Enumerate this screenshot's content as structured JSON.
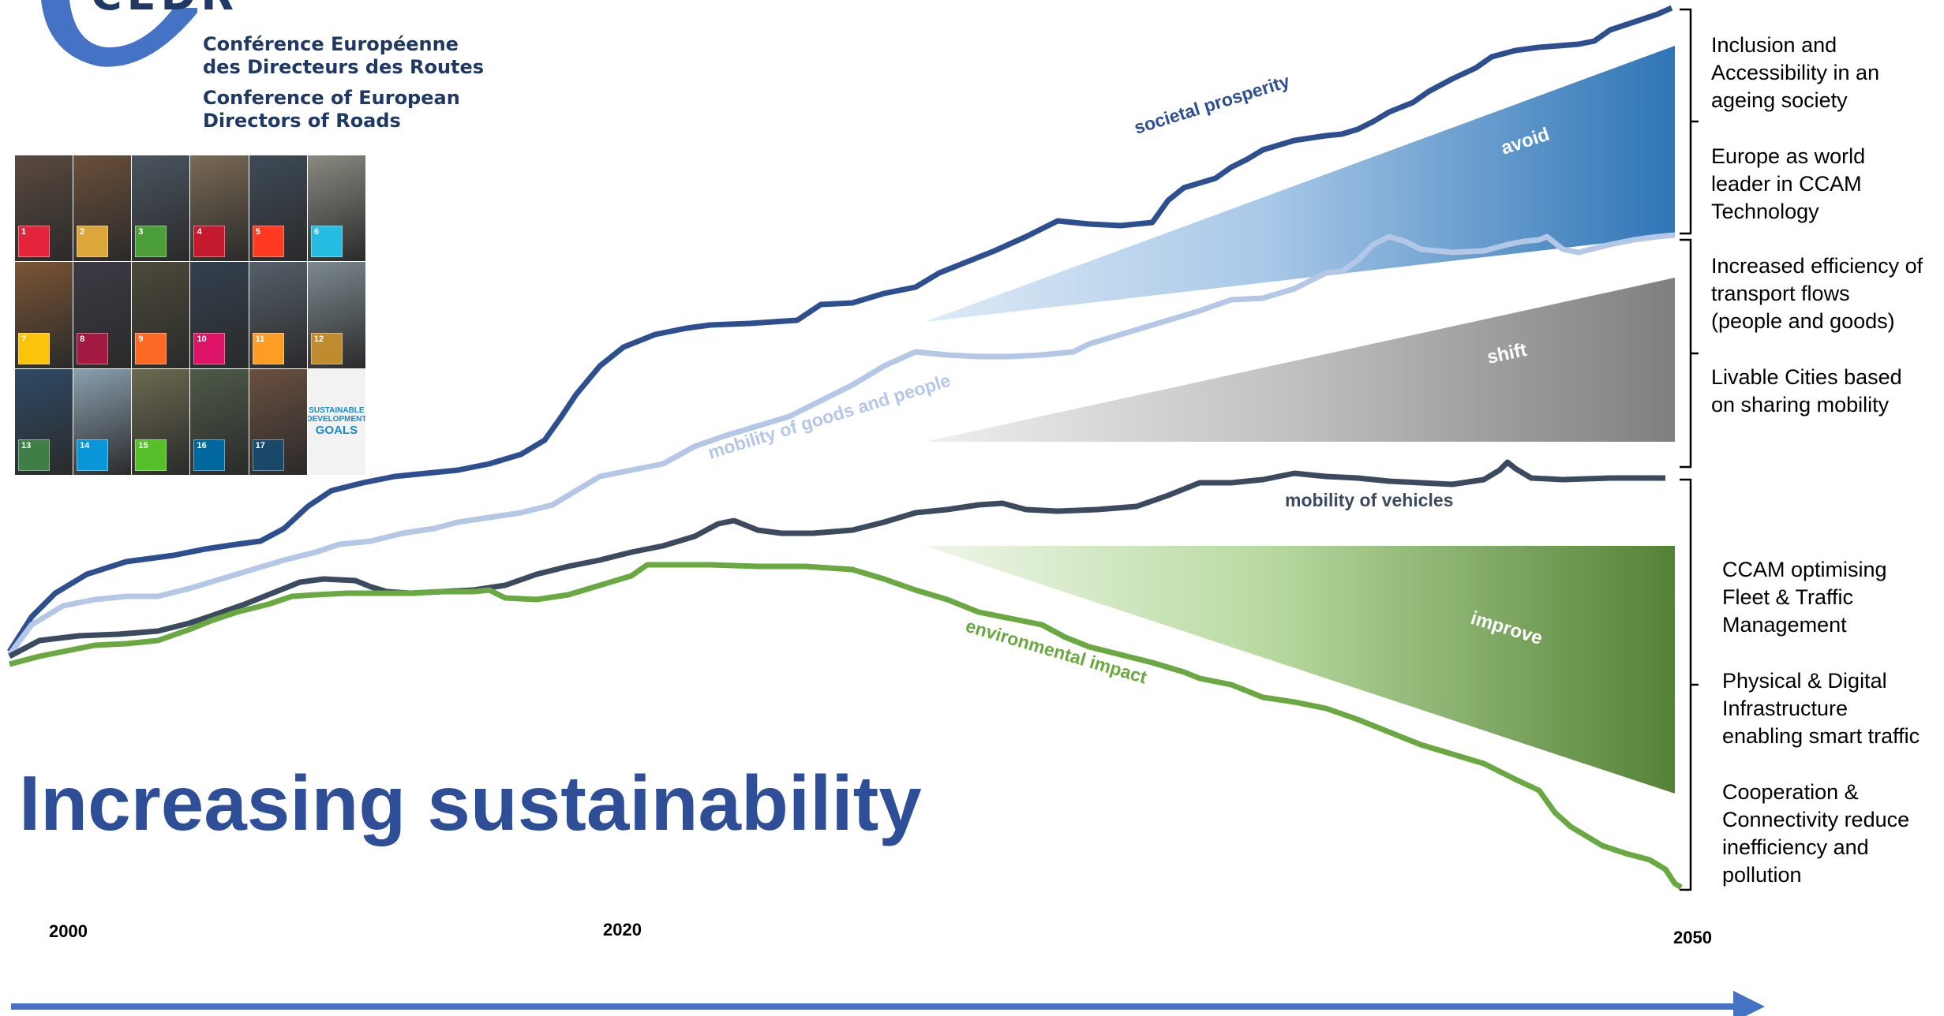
{
  "logo": {
    "wordmark": "CEDR",
    "fr_line1": "Conférence Européenne",
    "fr_line2": "des Directeurs des Routes",
    "en_line1": "Conference of European",
    "en_line2": "Directors of Roads"
  },
  "sdg": {
    "goals_label": "SUSTAINABLE DEVELOPMENT",
    "goals_word": "GOALS",
    "tiles": [
      {
        "num": "1",
        "color": "#e5243b"
      },
      {
        "num": "2",
        "color": "#dda63a"
      },
      {
        "num": "3",
        "color": "#4c9f38"
      },
      {
        "num": "4",
        "color": "#c5192d"
      },
      {
        "num": "5",
        "color": "#ff3a21"
      },
      {
        "num": "6",
        "color": "#26bde2"
      },
      {
        "num": "7",
        "color": "#fcc30b"
      },
      {
        "num": "8",
        "color": "#a21942"
      },
      {
        "num": "9",
        "color": "#fd6925"
      },
      {
        "num": "10",
        "color": "#dd1367"
      },
      {
        "num": "11",
        "color": "#fd9d24"
      },
      {
        "num": "12",
        "color": "#bf8b2e"
      },
      {
        "num": "13",
        "color": "#3f7e44"
      },
      {
        "num": "14",
        "color": "#0a97d9"
      },
      {
        "num": "15",
        "color": "#56c02b"
      },
      {
        "num": "16",
        "color": "#00689d"
      },
      {
        "num": "17",
        "color": "#19486a"
      }
    ]
  },
  "curves": {
    "societal_prosperity": "societal prosperity",
    "mobility_goods_people": "mobility of goods and people",
    "mobility_vehicles": "mobility of vehicles",
    "environmental_impact": "environmental impact"
  },
  "wedges": {
    "avoid": "avoid",
    "shift": "shift",
    "improve": "improve"
  },
  "right_panel": {
    "inclusion": "Inclusion and\nAccessibility in an\nageing society",
    "ccam_leader": "Europe as world\nleader in CCAM\nTechnology",
    "efficiency": "Increased efficiency of\ntransport flows\n(people and goods)",
    "livable": "Livable Cities based\non sharing mobility",
    "ccam_fleet": "CCAM optimising\nFleet & Traffic\nManagement",
    "infrastructure": "Physical & Digital\nInfrastructure\nenabling smart traffic",
    "cooperation": "Cooperation &\nConnectivity reduce\ninefficiency and\npollution"
  },
  "title": "Increasing sustainability",
  "timeline": {
    "year_start": "2000",
    "year_mid": "2020",
    "year_end": "2050"
  },
  "colors": {
    "prosperity": "#2e4f8f",
    "goods_people": "#b4c7e7",
    "vehicles": "#3b4a5f",
    "environment": "#6aa842",
    "title": "#2e4f97",
    "timeline": "#4472c4"
  }
}
